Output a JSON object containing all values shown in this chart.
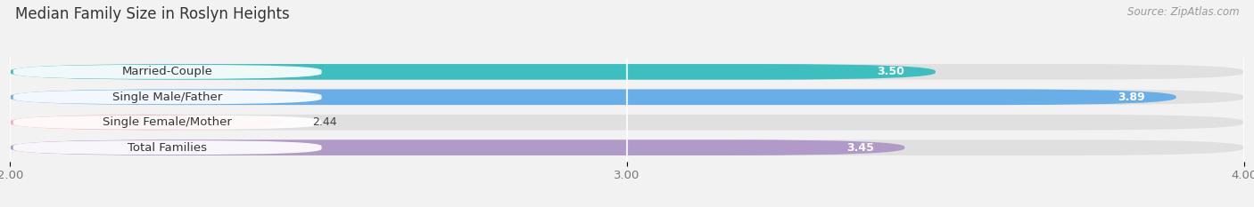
{
  "title": "Median Family Size in Roslyn Heights",
  "source": "Source: ZipAtlas.com",
  "categories": [
    "Married-Couple",
    "Single Male/Father",
    "Single Female/Mother",
    "Total Families"
  ],
  "values": [
    3.5,
    3.89,
    2.44,
    3.45
  ],
  "bar_colors": [
    "#3DBFBF",
    "#6AAEE8",
    "#F4ACBE",
    "#B09AC8"
  ],
  "background_color": "#f2f2f2",
  "bar_background_color": "#e0e0e0",
  "xlim": [
    2.0,
    4.0
  ],
  "xticks": [
    2.0,
    3.0,
    4.0
  ],
  "xtick_labels": [
    "2.00",
    "3.00",
    "4.00"
  ],
  "label_fontsize": 9.5,
  "value_fontsize": 9,
  "title_fontsize": 12,
  "source_fontsize": 8.5,
  "bar_height": 0.62
}
